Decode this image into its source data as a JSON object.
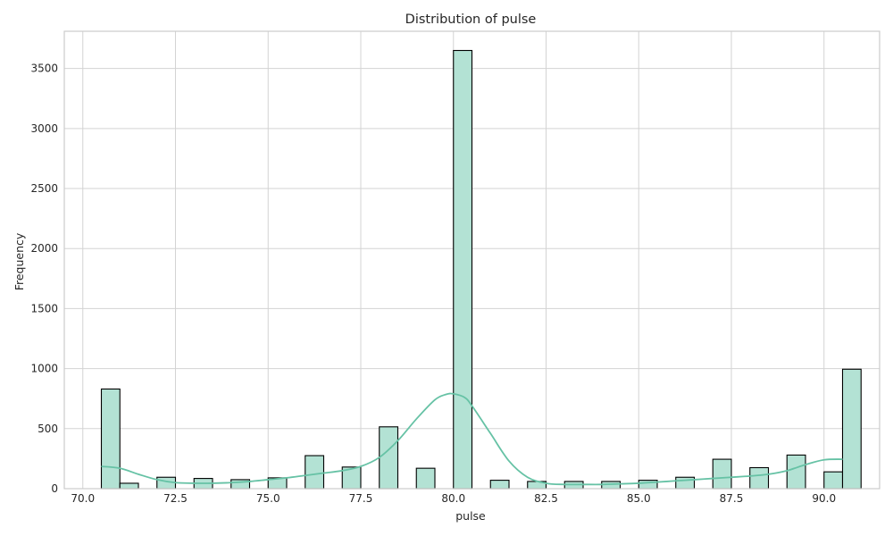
{
  "chart_data": {
    "type": "bar",
    "title": "Distribution of pulse",
    "xlabel": "pulse",
    "ylabel": "Frequency",
    "xlim": [
      69.5,
      91.5
    ],
    "ylim": [
      0,
      3810
    ],
    "x_ticks": [
      70.0,
      72.5,
      75.0,
      77.5,
      80.0,
      82.5,
      85.0,
      87.5,
      90.0
    ],
    "x_tick_labels": [
      "70.0",
      "72.5",
      "75.0",
      "77.5",
      "80.0",
      "82.5",
      "85.0",
      "87.5",
      "90.0"
    ],
    "y_ticks": [
      0,
      500,
      1000,
      1500,
      2000,
      2500,
      3000,
      3500
    ],
    "y_tick_labels": [
      "0",
      "500",
      "1000",
      "1500",
      "2000",
      "2500",
      "3000",
      "3500"
    ],
    "grid": true,
    "bin_width": 0.5,
    "bins": [
      {
        "start": 70.5,
        "count": 830
      },
      {
        "start": 71.0,
        "count": 45
      },
      {
        "start": 72.0,
        "count": 95
      },
      {
        "start": 73.0,
        "count": 85
      },
      {
        "start": 74.0,
        "count": 75
      },
      {
        "start": 75.0,
        "count": 90
      },
      {
        "start": 76.0,
        "count": 275
      },
      {
        "start": 77.0,
        "count": 180
      },
      {
        "start": 78.0,
        "count": 515
      },
      {
        "start": 79.0,
        "count": 170
      },
      {
        "start": 80.0,
        "count": 3650
      },
      {
        "start": 81.0,
        "count": 70
      },
      {
        "start": 82.0,
        "count": 60
      },
      {
        "start": 83.0,
        "count": 60
      },
      {
        "start": 84.0,
        "count": 60
      },
      {
        "start": 85.0,
        "count": 70
      },
      {
        "start": 86.0,
        "count": 95
      },
      {
        "start": 87.0,
        "count": 245
      },
      {
        "start": 88.0,
        "count": 175
      },
      {
        "start": 89.0,
        "count": 280
      },
      {
        "start": 90.0,
        "count": 140
      },
      {
        "start": 90.5,
        "count": 995
      }
    ],
    "kde": {
      "x": [
        70.5,
        71.0,
        71.5,
        72.0,
        72.5,
        73.0,
        73.5,
        74.0,
        74.5,
        75.0,
        75.5,
        76.0,
        76.5,
        77.0,
        77.5,
        78.0,
        78.5,
        79.0,
        79.5,
        79.8,
        80.0,
        80.3,
        80.5,
        81.0,
        81.5,
        82.0,
        82.5,
        83.0,
        83.5,
        84.0,
        84.5,
        85.0,
        85.5,
        86.0,
        86.5,
        87.0,
        87.5,
        88.0,
        88.5,
        89.0,
        89.5,
        90.0,
        90.5
      ],
      "y": [
        185,
        170,
        120,
        75,
        50,
        45,
        45,
        50,
        60,
        75,
        90,
        110,
        130,
        150,
        185,
        260,
        400,
        580,
        740,
        785,
        790,
        760,
        690,
        460,
        230,
        95,
        45,
        35,
        35,
        35,
        40,
        45,
        55,
        65,
        75,
        85,
        95,
        105,
        120,
        150,
        200,
        240,
        245
      ]
    },
    "colors": {
      "bar_fill": "#b3e2d4",
      "bar_edge": "#000000",
      "kde_line": "#66c2a5",
      "grid": "#d3d3d3",
      "axes_edge": "#cccccc"
    }
  }
}
